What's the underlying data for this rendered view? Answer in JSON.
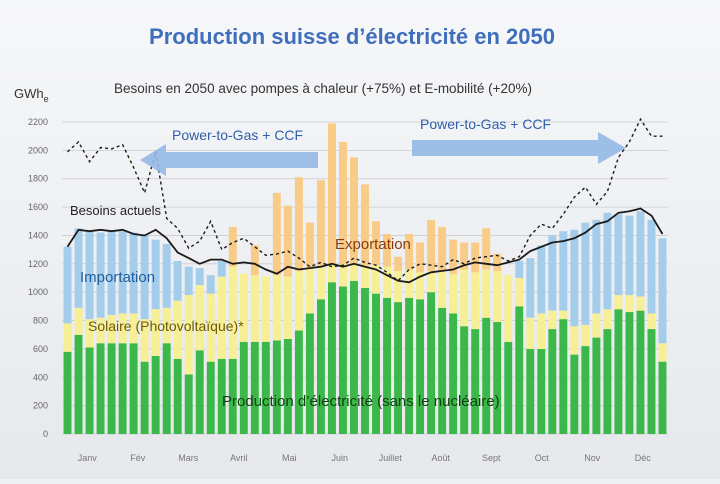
{
  "chart_data": {
    "type": "bar",
    "title": "Production suisse d’électricité en 2050",
    "ylabel": "GWh",
    "ylabel_sub": "e",
    "ylim": [
      0,
      2200
    ],
    "yticks": [
      0,
      200,
      400,
      600,
      800,
      1000,
      1200,
      1400,
      1600,
      1800,
      2000,
      2200
    ],
    "months": [
      "Janv",
      "Fév",
      "Mars",
      "Avril",
      "Mai",
      "Juin",
      "Juillet",
      "Août",
      "Sept",
      "Oct",
      "Nov",
      "Déc"
    ],
    "stack_series": [
      {
        "name": "Production d’électricité (sans le nucléaire)",
        "color": "#3cb84a",
        "values": [
          580,
          700,
          610,
          640,
          640,
          640,
          640,
          510,
          550,
          640,
          530,
          420,
          590,
          510,
          530,
          530,
          650,
          650,
          650,
          660,
          670,
          730,
          850,
          950,
          1070,
          1040,
          1080,
          1030,
          990,
          960,
          930,
          960,
          950,
          1000,
          890,
          850,
          760,
          740,
          820,
          790,
          650,
          900,
          600,
          600,
          740,
          810,
          560,
          620,
          680,
          740,
          880,
          860,
          870,
          740,
          510
        ]
      },
      {
        "name": "Solaire (Photovoltaïque)*",
        "color": "#f6ef95",
        "values": [
          200,
          190,
          200,
          180,
          200,
          210,
          210,
          300,
          330,
          250,
          410,
          560,
          460,
          480,
          580,
          650,
          480,
          470,
          460,
          460,
          440,
          420,
          320,
          240,
          120,
          160,
          110,
          150,
          200,
          220,
          220,
          200,
          190,
          150,
          260,
          280,
          400,
          400,
          340,
          360,
          470,
          200,
          220,
          250,
          130,
          60,
          200,
          150,
          170,
          140,
          100,
          120,
          100,
          110,
          130
        ]
      },
      {
        "name": "Importation",
        "color": "#a3cdeb",
        "values": [
          540,
          560,
          620,
          600,
          590,
          580,
          570,
          590,
          490,
          450,
          280,
          200,
          120,
          130,
          110,
          0,
          0,
          0,
          0,
          0,
          0,
          0,
          0,
          0,
          0,
          0,
          0,
          0,
          0,
          0,
          0,
          0,
          0,
          0,
          0,
          0,
          0,
          0,
          0,
          0,
          0,
          120,
          420,
          480,
          530,
          560,
          680,
          720,
          660,
          680,
          570,
          560,
          600,
          660,
          740
        ]
      }
    ],
    "export_series": {
      "name": "Exportation",
      "color": "#f8cb86",
      "values": [
        0,
        0,
        0,
        0,
        0,
        0,
        0,
        0,
        0,
        0,
        0,
        0,
        0,
        0,
        0,
        280,
        0,
        210,
        0,
        580,
        500,
        660,
        320,
        600,
        1000,
        860,
        760,
        580,
        310,
        230,
        100,
        250,
        210,
        360,
        310,
        240,
        190,
        210,
        290,
        120,
        0,
        0,
        0,
        0,
        0,
        0,
        0,
        0,
        0,
        0,
        0,
        0,
        0,
        0,
        0
      ]
    },
    "lines": [
      {
        "name": "Besoins actuels",
        "style": "solid",
        "values": [
          1320,
          1440,
          1430,
          1440,
          1430,
          1440,
          1410,
          1400,
          1440,
          1380,
          1280,
          1240,
          1200,
          1230,
          1230,
          1200,
          1210,
          1200,
          1160,
          1130,
          1180,
          1160,
          1170,
          1180,
          1200,
          1180,
          1200,
          1180,
          1160,
          1120,
          1080,
          1070,
          1110,
          1140,
          1150,
          1160,
          1190,
          1210,
          1200,
          1190,
          1210,
          1230,
          1290,
          1320,
          1350,
          1360,
          1380,
          1420,
          1480,
          1500,
          1560,
          1570,
          1590,
          1540,
          1410
        ]
      },
      {
        "name": "Besoins en 2050 avec pompes à chaleur (+75%) et E-mobilité (+20%)",
        "style": "dashed",
        "values": [
          1990,
          2060,
          1920,
          2020,
          2010,
          2040,
          1880,
          1700,
          1990,
          1520,
          1450,
          1310,
          1360,
          1500,
          1300,
          1350,
          1380,
          1320,
          1260,
          1270,
          1290,
          1240,
          1180,
          1210,
          1180,
          1190,
          1240,
          1210,
          1190,
          1140,
          1080,
          1160,
          1200,
          1190,
          1180,
          1230,
          1200,
          1240,
          1250,
          1260,
          1220,
          1250,
          1400,
          1480,
          1450,
          1550,
          1670,
          1740,
          1620,
          1710,
          1950,
          2060,
          2220,
          2100,
          2100
        ]
      }
    ],
    "annotations": [
      {
        "text": "Power-to-Gas + CCF",
        "direction": "left"
      },
      {
        "text": "Power-to-Gas + CCF",
        "direction": "right"
      }
    ]
  }
}
